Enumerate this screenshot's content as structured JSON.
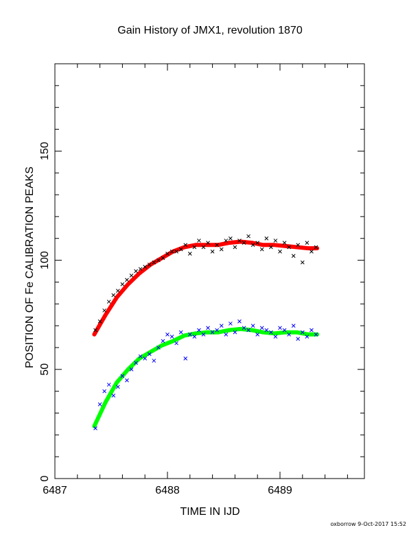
{
  "chart_data": {
    "type": "scatter",
    "title": "Gain History of JMX1, revolution 1870",
    "xlabel": "TIME IN IJD",
    "ylabel": "POSITION OF Fe CALIBRATION PEAKS",
    "footer": "oxborrow 9-Oct-2017 15:52",
    "xlim": [
      6487,
      6489.75
    ],
    "ylim": [
      0,
      190
    ],
    "xticks": [
      6487,
      6488,
      6489
    ],
    "yticks": [
      0,
      50,
      100,
      150
    ],
    "xtick_labels": [
      "6487",
      "6488",
      "6489"
    ],
    "ytick_labels": [
      "0",
      "50",
      "100",
      "150"
    ],
    "grid": false,
    "colors": {
      "upper_points": "#000000",
      "upper_fit": "#ff0000",
      "lower_points": "#0000ff",
      "lower_fit": "#00ff00"
    },
    "series": [
      {
        "kind": "fit-curve",
        "color": "red",
        "x": [
          6487.35,
          6487.45,
          6487.55,
          6487.65,
          6487.75,
          6487.85,
          6487.95,
          6488.05,
          6488.15,
          6488.25,
          6488.35,
          6488.45,
          6488.55,
          6488.65,
          6488.75,
          6488.85,
          6488.95,
          6489.05,
          6489.15,
          6489.25,
          6489.33
        ],
        "y": [
          66,
          75,
          83,
          89,
          94,
          98,
          101,
          104,
          106,
          107,
          107,
          107,
          108,
          108.5,
          108,
          107,
          107,
          106.5,
          106,
          105.5,
          105.5
        ]
      },
      {
        "kind": "measurements",
        "color": "black",
        "x": [
          6487.36,
          6487.4,
          6487.44,
          6487.48,
          6487.52,
          6487.56,
          6487.6,
          6487.64,
          6487.68,
          6487.72,
          6487.76,
          6487.8,
          6487.84,
          6487.88,
          6487.92,
          6487.96,
          6488.0,
          6488.04,
          6488.08,
          6488.12,
          6488.16,
          6488.2,
          6488.24,
          6488.28,
          6488.32,
          6488.36,
          6488.4,
          6488.44,
          6488.48,
          6488.52,
          6488.56,
          6488.6,
          6488.64,
          6488.68,
          6488.72,
          6488.76,
          6488.8,
          6488.84,
          6488.88,
          6488.92,
          6488.96,
          6489.0,
          6489.04,
          6489.08,
          6489.12,
          6489.16,
          6489.2,
          6489.24,
          6489.28,
          6489.32
        ],
        "y": [
          68,
          72,
          77,
          81,
          84,
          86,
          89,
          91,
          93,
          95,
          96,
          97,
          98,
          99,
          100,
          101,
          103,
          104,
          104,
          105,
          107,
          103,
          106,
          109,
          106,
          108,
          104,
          107,
          105,
          109,
          110,
          106,
          109,
          108,
          111,
          107,
          108,
          105,
          110,
          106,
          109,
          104,
          108,
          106,
          102,
          107,
          99,
          108,
          104,
          106
        ]
      },
      {
        "kind": "fit-curve",
        "color": "green",
        "x": [
          6487.35,
          6487.45,
          6487.55,
          6487.65,
          6487.75,
          6487.85,
          6487.95,
          6488.05,
          6488.15,
          6488.25,
          6488.35,
          6488.45,
          6488.55,
          6488.65,
          6488.75,
          6488.85,
          6488.95,
          6489.05,
          6489.15,
          6489.25,
          6489.33
        ],
        "y": [
          24,
          35,
          44,
          50,
          55,
          58,
          61,
          63,
          65.5,
          66.5,
          67,
          67,
          68,
          68.5,
          68,
          67,
          66.5,
          67,
          67,
          66,
          66
        ]
      },
      {
        "kind": "measurements",
        "color": "blue",
        "x": [
          6487.36,
          6487.4,
          6487.44,
          6487.48,
          6487.52,
          6487.56,
          6487.6,
          6487.64,
          6487.68,
          6487.72,
          6487.76,
          6487.8,
          6487.84,
          6487.88,
          6487.92,
          6487.96,
          6488.0,
          6488.04,
          6488.08,
          6488.12,
          6488.16,
          6488.2,
          6488.24,
          6488.28,
          6488.32,
          6488.36,
          6488.4,
          6488.44,
          6488.48,
          6488.52,
          6488.56,
          6488.6,
          6488.64,
          6488.68,
          6488.72,
          6488.76,
          6488.8,
          6488.84,
          6488.88,
          6488.92,
          6488.96,
          6489.0,
          6489.04,
          6489.08,
          6489.12,
          6489.16,
          6489.2,
          6489.24,
          6489.28,
          6489.32
        ],
        "y": [
          23,
          34,
          40,
          43,
          38,
          42,
          47,
          45,
          50,
          53,
          56,
          55,
          57,
          54,
          60,
          63,
          66,
          65,
          62,
          67,
          55,
          66,
          65,
          68,
          66,
          69,
          67,
          68,
          70,
          66,
          71,
          67,
          72,
          69,
          68,
          70,
          66,
          69,
          68,
          67,
          65,
          69,
          68,
          66,
          70,
          64,
          67,
          65,
          68,
          66
        ]
      }
    ]
  }
}
